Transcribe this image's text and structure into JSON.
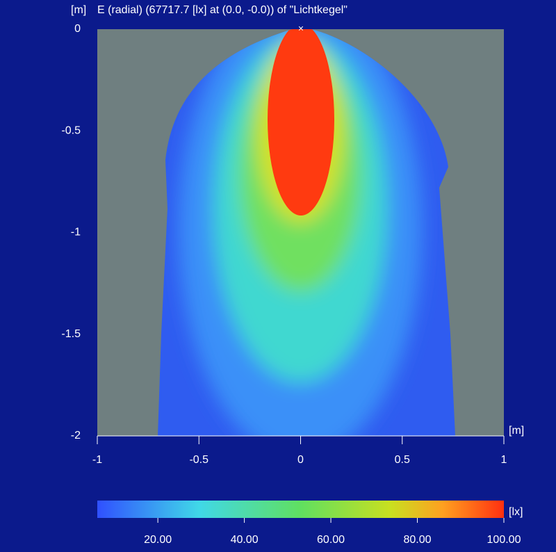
{
  "chart_data": {
    "type": "heatmap",
    "title": "E (radial) (67717.7 [lx] at (0.0, -0.0)) of \"Lichtkegel\"",
    "y_label": "[m]",
    "x_label": "[m]",
    "xlim": [
      -1,
      1
    ],
    "xticks": [
      -1,
      -0.5,
      0,
      0.5,
      1
    ],
    "ylim": [
      -2,
      0
    ],
    "yticks": [
      0,
      -0.5,
      -1,
      -1.5,
      -2
    ],
    "colorbar": {
      "label": "[lx]",
      "lim": [
        6,
        100
      ],
      "ticks": [
        {
          "value": 20,
          "label": "20.00"
        },
        {
          "value": 40,
          "label": "40.00"
        },
        {
          "value": 60,
          "label": "60.00"
        },
        {
          "value": 80,
          "label": "80.00"
        },
        {
          "value": 100,
          "label": "100.00"
        }
      ]
    }
  }
}
